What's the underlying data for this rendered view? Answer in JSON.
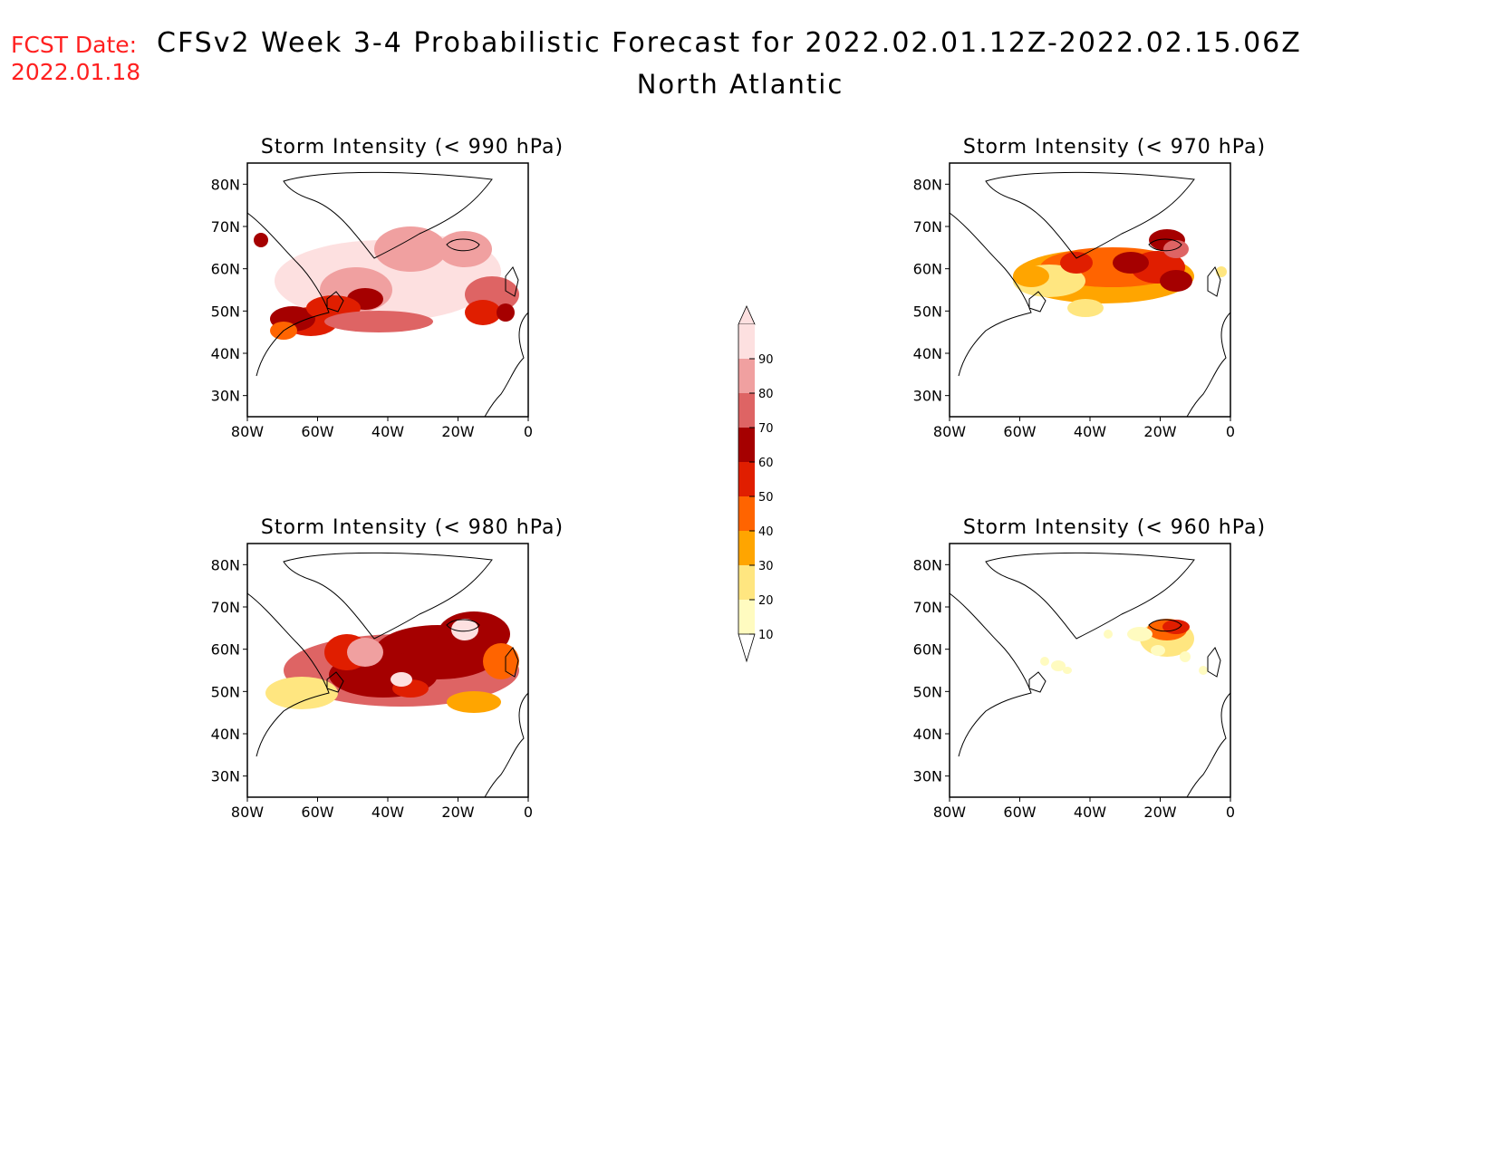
{
  "header": {
    "fcst_label": "FCST Date:",
    "fcst_date": "2022.01.18",
    "title": "CFSv2 Week 3-4 Probabilistic Forecast for 2022.02.01.12Z-2022.02.15.06Z",
    "region": "North Atlantic"
  },
  "colorbar": {
    "levels": [
      "10",
      "20",
      "30",
      "40",
      "50",
      "60",
      "70",
      "80",
      "90"
    ],
    "colors": [
      "#fffbc0",
      "#ffe680",
      "#ffa500",
      "#ff6400",
      "#e01e00",
      "#a50000",
      "#de6464",
      "#f0a0a0",
      "#fde0e0"
    ]
  },
  "axes": {
    "lat_labels": [
      "80N",
      "70N",
      "60N",
      "50N",
      "40N",
      "30N"
    ],
    "lon_labels": [
      "80W",
      "60W",
      "40W",
      "20W",
      "0"
    ]
  },
  "panels": [
    {
      "id": "p990",
      "title": "Storm Intensity (< 990 hPa)"
    },
    {
      "id": "p970",
      "title": "Storm Intensity (< 970 hPa)"
    },
    {
      "id": "p980",
      "title": "Storm Intensity (< 980 hPa)"
    },
    {
      "id": "p960",
      "title": "Storm Intensity (< 960 hPa)"
    }
  ]
}
